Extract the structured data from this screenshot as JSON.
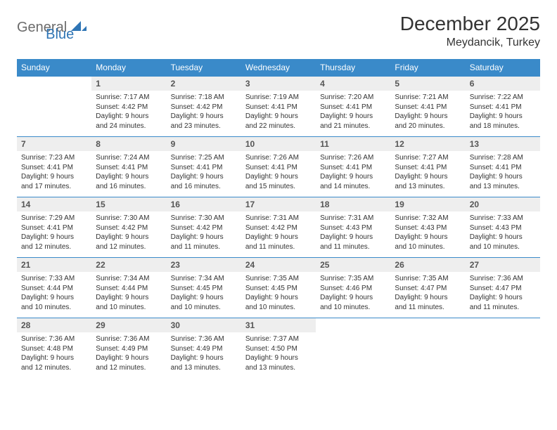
{
  "brand": {
    "part1": "General",
    "part2": "Blue"
  },
  "title": "December 2025",
  "location": "Meydancik, Turkey",
  "colors": {
    "header_bg": "#3a8ac9",
    "header_text": "#ffffff",
    "daynum_bg": "#eeeeee",
    "border": "#3a8ac9",
    "brand_gray": "#6b6b6b",
    "brand_blue": "#2f75b5"
  },
  "day_headers": [
    "Sunday",
    "Monday",
    "Tuesday",
    "Wednesday",
    "Thursday",
    "Friday",
    "Saturday"
  ],
  "weeks": [
    [
      null,
      {
        "n": "1",
        "sr": "Sunrise: 7:17 AM",
        "ss": "Sunset: 4:42 PM",
        "d1": "Daylight: 9 hours",
        "d2": "and 24 minutes."
      },
      {
        "n": "2",
        "sr": "Sunrise: 7:18 AM",
        "ss": "Sunset: 4:42 PM",
        "d1": "Daylight: 9 hours",
        "d2": "and 23 minutes."
      },
      {
        "n": "3",
        "sr": "Sunrise: 7:19 AM",
        "ss": "Sunset: 4:41 PM",
        "d1": "Daylight: 9 hours",
        "d2": "and 22 minutes."
      },
      {
        "n": "4",
        "sr": "Sunrise: 7:20 AM",
        "ss": "Sunset: 4:41 PM",
        "d1": "Daylight: 9 hours",
        "d2": "and 21 minutes."
      },
      {
        "n": "5",
        "sr": "Sunrise: 7:21 AM",
        "ss": "Sunset: 4:41 PM",
        "d1": "Daylight: 9 hours",
        "d2": "and 20 minutes."
      },
      {
        "n": "6",
        "sr": "Sunrise: 7:22 AM",
        "ss": "Sunset: 4:41 PM",
        "d1": "Daylight: 9 hours",
        "d2": "and 18 minutes."
      }
    ],
    [
      {
        "n": "7",
        "sr": "Sunrise: 7:23 AM",
        "ss": "Sunset: 4:41 PM",
        "d1": "Daylight: 9 hours",
        "d2": "and 17 minutes."
      },
      {
        "n": "8",
        "sr": "Sunrise: 7:24 AM",
        "ss": "Sunset: 4:41 PM",
        "d1": "Daylight: 9 hours",
        "d2": "and 16 minutes."
      },
      {
        "n": "9",
        "sr": "Sunrise: 7:25 AM",
        "ss": "Sunset: 4:41 PM",
        "d1": "Daylight: 9 hours",
        "d2": "and 16 minutes."
      },
      {
        "n": "10",
        "sr": "Sunrise: 7:26 AM",
        "ss": "Sunset: 4:41 PM",
        "d1": "Daylight: 9 hours",
        "d2": "and 15 minutes."
      },
      {
        "n": "11",
        "sr": "Sunrise: 7:26 AM",
        "ss": "Sunset: 4:41 PM",
        "d1": "Daylight: 9 hours",
        "d2": "and 14 minutes."
      },
      {
        "n": "12",
        "sr": "Sunrise: 7:27 AM",
        "ss": "Sunset: 4:41 PM",
        "d1": "Daylight: 9 hours",
        "d2": "and 13 minutes."
      },
      {
        "n": "13",
        "sr": "Sunrise: 7:28 AM",
        "ss": "Sunset: 4:41 PM",
        "d1": "Daylight: 9 hours",
        "d2": "and 13 minutes."
      }
    ],
    [
      {
        "n": "14",
        "sr": "Sunrise: 7:29 AM",
        "ss": "Sunset: 4:41 PM",
        "d1": "Daylight: 9 hours",
        "d2": "and 12 minutes."
      },
      {
        "n": "15",
        "sr": "Sunrise: 7:30 AM",
        "ss": "Sunset: 4:42 PM",
        "d1": "Daylight: 9 hours",
        "d2": "and 12 minutes."
      },
      {
        "n": "16",
        "sr": "Sunrise: 7:30 AM",
        "ss": "Sunset: 4:42 PM",
        "d1": "Daylight: 9 hours",
        "d2": "and 11 minutes."
      },
      {
        "n": "17",
        "sr": "Sunrise: 7:31 AM",
        "ss": "Sunset: 4:42 PM",
        "d1": "Daylight: 9 hours",
        "d2": "and 11 minutes."
      },
      {
        "n": "18",
        "sr": "Sunrise: 7:31 AM",
        "ss": "Sunset: 4:43 PM",
        "d1": "Daylight: 9 hours",
        "d2": "and 11 minutes."
      },
      {
        "n": "19",
        "sr": "Sunrise: 7:32 AM",
        "ss": "Sunset: 4:43 PM",
        "d1": "Daylight: 9 hours",
        "d2": "and 10 minutes."
      },
      {
        "n": "20",
        "sr": "Sunrise: 7:33 AM",
        "ss": "Sunset: 4:43 PM",
        "d1": "Daylight: 9 hours",
        "d2": "and 10 minutes."
      }
    ],
    [
      {
        "n": "21",
        "sr": "Sunrise: 7:33 AM",
        "ss": "Sunset: 4:44 PM",
        "d1": "Daylight: 9 hours",
        "d2": "and 10 minutes."
      },
      {
        "n": "22",
        "sr": "Sunrise: 7:34 AM",
        "ss": "Sunset: 4:44 PM",
        "d1": "Daylight: 9 hours",
        "d2": "and 10 minutes."
      },
      {
        "n": "23",
        "sr": "Sunrise: 7:34 AM",
        "ss": "Sunset: 4:45 PM",
        "d1": "Daylight: 9 hours",
        "d2": "and 10 minutes."
      },
      {
        "n": "24",
        "sr": "Sunrise: 7:35 AM",
        "ss": "Sunset: 4:45 PM",
        "d1": "Daylight: 9 hours",
        "d2": "and 10 minutes."
      },
      {
        "n": "25",
        "sr": "Sunrise: 7:35 AM",
        "ss": "Sunset: 4:46 PM",
        "d1": "Daylight: 9 hours",
        "d2": "and 10 minutes."
      },
      {
        "n": "26",
        "sr": "Sunrise: 7:35 AM",
        "ss": "Sunset: 4:47 PM",
        "d1": "Daylight: 9 hours",
        "d2": "and 11 minutes."
      },
      {
        "n": "27",
        "sr": "Sunrise: 7:36 AM",
        "ss": "Sunset: 4:47 PM",
        "d1": "Daylight: 9 hours",
        "d2": "and 11 minutes."
      }
    ],
    [
      {
        "n": "28",
        "sr": "Sunrise: 7:36 AM",
        "ss": "Sunset: 4:48 PM",
        "d1": "Daylight: 9 hours",
        "d2": "and 12 minutes."
      },
      {
        "n": "29",
        "sr": "Sunrise: 7:36 AM",
        "ss": "Sunset: 4:49 PM",
        "d1": "Daylight: 9 hours",
        "d2": "and 12 minutes."
      },
      {
        "n": "30",
        "sr": "Sunrise: 7:36 AM",
        "ss": "Sunset: 4:49 PM",
        "d1": "Daylight: 9 hours",
        "d2": "and 13 minutes."
      },
      {
        "n": "31",
        "sr": "Sunrise: 7:37 AM",
        "ss": "Sunset: 4:50 PM",
        "d1": "Daylight: 9 hours",
        "d2": "and 13 minutes."
      },
      null,
      null,
      null
    ]
  ]
}
